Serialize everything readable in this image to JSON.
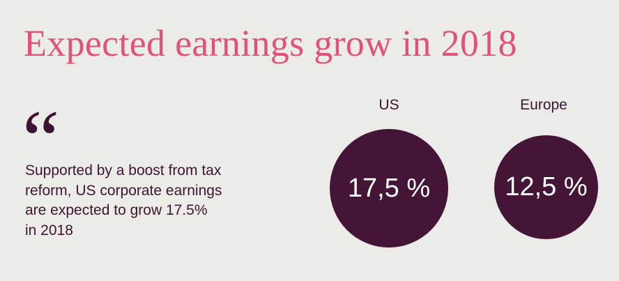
{
  "title": "Expected earnings grow in 2018",
  "quote": {
    "mark": "“",
    "text": "Supported by a boost from tax\nreform, US corporate earnings\nare expected to grow 17.5%\nin 2018"
  },
  "regions": [
    {
      "label": "US",
      "value": "17,5 %"
    },
    {
      "label": "Europe",
      "value": "12,5 %"
    }
  ],
  "colors": {
    "background": "#ebebe7",
    "title": "#e0527a",
    "circle": "#441536",
    "text": "#3d1433"
  }
}
